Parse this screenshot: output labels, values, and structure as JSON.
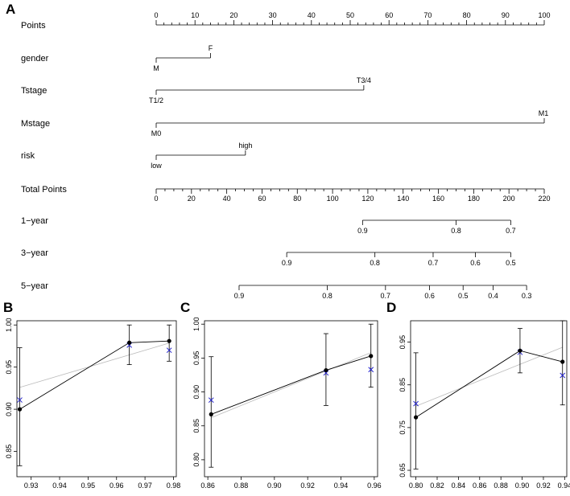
{
  "panels": {
    "a": "A",
    "b": "B",
    "c": "C",
    "d": "D"
  },
  "nomogram": {
    "type": "nomogram",
    "rows": [
      {
        "label": "Points",
        "kind": "axis",
        "domain": [
          0,
          100
        ],
        "major": [
          0,
          10,
          20,
          30,
          40,
          50,
          60,
          70,
          80,
          90,
          100
        ],
        "minor_step": 2,
        "labels_above": true
      },
      {
        "label": "gender",
        "kind": "variable",
        "levels": [
          {
            "name": "M",
            "points": 0,
            "pos": "below"
          },
          {
            "name": "F",
            "points": 14,
            "pos": "above"
          }
        ]
      },
      {
        "label": "Tstage",
        "kind": "variable",
        "levels": [
          {
            "name": "T1/2",
            "points": 0,
            "pos": "below"
          },
          {
            "name": "T3/4",
            "points": 53.5,
            "pos": "above"
          }
        ]
      },
      {
        "label": "Mstage",
        "kind": "variable",
        "levels": [
          {
            "name": "M0",
            "points": 0,
            "pos": "below"
          },
          {
            "name": "M1",
            "points": 100,
            "pos": "above"
          }
        ]
      },
      {
        "label": "risk",
        "kind": "variable",
        "levels": [
          {
            "name": "low",
            "points": 0,
            "pos": "below"
          },
          {
            "name": "high",
            "points": 23,
            "pos": "above"
          }
        ]
      },
      {
        "label": "Total Points",
        "kind": "axis",
        "domain": [
          0,
          220
        ],
        "major": [
          0,
          20,
          40,
          60,
          80,
          100,
          120,
          140,
          160,
          180,
          200,
          220
        ],
        "minor_step": 5,
        "labels_above": false
      },
      {
        "label": "1−year",
        "kind": "probability",
        "ticks": [
          {
            "label": "0.9",
            "total": 117
          },
          {
            "label": "0.8",
            "total": 170
          },
          {
            "label": "0.7",
            "total": 201
          }
        ]
      },
      {
        "label": "3−year",
        "kind": "probability",
        "ticks": [
          {
            "label": "0.9",
            "total": 74
          },
          {
            "label": "0.8",
            "total": 124
          },
          {
            "label": "0.7",
            "total": 157
          },
          {
            "label": "0.6",
            "total": 181
          },
          {
            "label": "0.5",
            "total": 201
          }
        ]
      },
      {
        "label": "5−year",
        "kind": "probability",
        "ticks": [
          {
            "label": "0.9",
            "total": 47
          },
          {
            "label": "0.8",
            "total": 97
          },
          {
            "label": "0.7",
            "total": 130
          },
          {
            "label": "0.6",
            "total": 155
          },
          {
            "label": "0.5",
            "total": 174
          },
          {
            "label": "0.4",
            "total": 191
          },
          {
            "label": "0.3",
            "total": 210
          }
        ]
      }
    ]
  },
  "chart_data": [
    {
      "panel": "B",
      "type": "scatter",
      "xlim": [
        0.925,
        0.981
      ],
      "ylim": [
        0.82,
        1.005
      ],
      "xticks": [
        "0.93",
        "0.94",
        "0.95",
        "0.96",
        "0.97",
        "0.98"
      ],
      "xtick_values": [
        0.93,
        0.94,
        0.95,
        0.96,
        0.97,
        0.98
      ],
      "yticks": [
        "0.85",
        "0.90",
        "0.95",
        "1.00"
      ],
      "ytick_values": [
        0.85,
        0.9,
        0.95,
        1.0
      ],
      "observed": [
        {
          "x": 0.926,
          "y": 0.9,
          "lo": 0.833,
          "hi": 0.973
        },
        {
          "x": 0.9645,
          "y": 0.979,
          "lo": 0.953,
          "hi": 1.0
        },
        {
          "x": 0.9785,
          "y": 0.981,
          "lo": 0.957,
          "hi": 1.0
        }
      ],
      "corrected": [
        {
          "x": 0.926,
          "y": 0.911
        },
        {
          "x": 0.9645,
          "y": 0.976
        },
        {
          "x": 0.9785,
          "y": 0.97
        }
      ],
      "reference": [
        [
          0.926,
          0.926
        ],
        [
          0.9785,
          0.9785
        ]
      ]
    },
    {
      "panel": "C",
      "type": "scatter",
      "xlim": [
        0.858,
        0.962
      ],
      "ylim": [
        0.775,
        1.005
      ],
      "xticks": [
        "0.86",
        "0.88",
        "0.90",
        "0.92",
        "0.94",
        "0.96"
      ],
      "xtick_values": [
        0.86,
        0.88,
        0.9,
        0.92,
        0.94,
        0.96
      ],
      "yticks": [
        "0.80",
        "0.85",
        "0.90",
        "0.95",
        "1.00"
      ],
      "ytick_values": [
        0.8,
        0.85,
        0.9,
        0.95,
        1.0
      ],
      "observed": [
        {
          "x": 0.862,
          "y": 0.867,
          "lo": 0.789,
          "hi": 0.952
        },
        {
          "x": 0.931,
          "y": 0.932,
          "lo": 0.88,
          "hi": 0.986
        },
        {
          "x": 0.958,
          "y": 0.953,
          "lo": 0.907,
          "hi": 1.0
        }
      ],
      "corrected": [
        {
          "x": 0.862,
          "y": 0.888
        },
        {
          "x": 0.931,
          "y": 0.928
        },
        {
          "x": 0.958,
          "y": 0.933
        }
      ],
      "reference": [
        [
          0.862,
          0.862
        ],
        [
          0.958,
          0.958
        ]
      ]
    },
    {
      "panel": "D",
      "type": "scatter",
      "xlim": [
        0.795,
        0.942
      ],
      "ylim": [
        0.635,
        1.0
      ],
      "xticks": [
        "0.80",
        "0.82",
        "0.84",
        "0.86",
        "0.88",
        "0.90",
        "0.92",
        "0.94"
      ],
      "xtick_values": [
        0.8,
        0.82,
        0.84,
        0.86,
        0.88,
        0.9,
        0.92,
        0.94
      ],
      "yticks": [
        "0.65",
        "0.75",
        "0.85",
        "0.95"
      ],
      "ytick_values": [
        0.65,
        0.75,
        0.85,
        0.95
      ],
      "observed": [
        {
          "x": 0.8,
          "y": 0.774,
          "lo": 0.653,
          "hi": 0.925
        },
        {
          "x": 0.898,
          "y": 0.93,
          "lo": 0.878,
          "hi": 0.982
        },
        {
          "x": 0.938,
          "y": 0.904,
          "lo": 0.803,
          "hi": 1.0
        }
      ],
      "corrected": [
        {
          "x": 0.8,
          "y": 0.806
        },
        {
          "x": 0.898,
          "y": 0.926
        },
        {
          "x": 0.938,
          "y": 0.872
        }
      ],
      "reference": [
        [
          0.8,
          0.8
        ],
        [
          0.938,
          0.938
        ]
      ]
    }
  ]
}
